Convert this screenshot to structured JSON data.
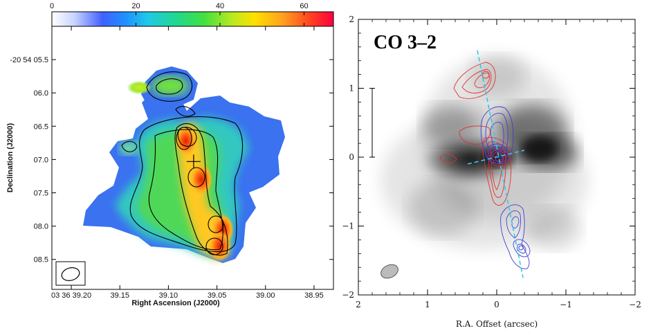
{
  "chart_data": [
    {
      "type": "heatmap",
      "title": "",
      "colorbar": {
        "ticks": [
          "0",
          "20",
          "40",
          "60"
        ],
        "range": [
          0,
          67
        ]
      },
      "xlabel": "Right Ascension (J2000)",
      "ylabel": "Declination (J2000)",
      "x_ticks": [
        "03 36 39.20",
        "39.15",
        "39.10",
        "39.05",
        "39.00",
        "38.95"
      ],
      "y_ticks": [
        "-20 54 05.5",
        "06.0",
        "06.5",
        "07.0",
        "07.5",
        "08.0",
        "08.5"
      ],
      "x_tick_values": [
        39.2,
        39.15,
        39.1,
        39.05,
        39.0,
        38.95
      ],
      "y_tick_values": [
        5.5,
        6.0,
        6.5,
        7.0,
        7.5,
        8.0,
        8.5
      ],
      "xlim": [
        39.22,
        38.93
      ],
      "ylim": [
        5.0,
        8.95
      ],
      "peaks": [
        {
          "ra": 39.082,
          "dec": 6.72,
          "value": 62
        },
        {
          "ra": 39.066,
          "dec": 7.3,
          "value": 64
        },
        {
          "ra": 39.044,
          "dec": 8.05,
          "value": 55
        },
        {
          "ra": 39.047,
          "dec": 8.3,
          "value": 58
        },
        {
          "ra": 39.13,
          "dec": 5.92,
          "value": 36
        }
      ],
      "center_marker": {
        "ra": 39.074,
        "dec": 7.03
      },
      "beam": "ellipse, bottom-left"
    },
    {
      "type": "scatter",
      "title": "CO 3–2",
      "xlabel": "R.A. Offset (arcsec)",
      "ylabel": "",
      "x_ticks": [
        "2",
        "1",
        "0",
        "−1",
        "−2"
      ],
      "y_ticks": [
        "2",
        "1",
        "0",
        "−1",
        "−2"
      ],
      "x_tick_values": [
        2,
        1,
        0,
        -1,
        -2
      ],
      "y_tick_values": [
        2,
        1,
        0,
        -1,
        -2
      ],
      "xlim": [
        2,
        -2
      ],
      "ylim": [
        -2,
        2
      ],
      "scale_bar": {
        "x": 1.8,
        "y_from": 0.0,
        "y_to": 1.0
      },
      "redshifted_lobes": [
        {
          "x": 0.18,
          "y": 1.2
        },
        {
          "x": 0.05,
          "y": 0.55
        },
        {
          "x": -0.08,
          "y": -0.3
        }
      ],
      "blueshifted_lobes": [
        {
          "x": -0.02,
          "y": 0.35
        },
        {
          "x": -0.22,
          "y": -0.9
        },
        {
          "x": -0.3,
          "y": -1.35
        }
      ],
      "jet_axis": [
        {
          "x": 0.28,
          "y": 1.55
        },
        {
          "x": -0.38,
          "y": -1.75
        }
      ],
      "disk_axis": [
        {
          "x": 0.42,
          "y": -0.1
        },
        {
          "x": -0.4,
          "y": 0.1
        }
      ],
      "beam": "grey ellipse, bottom-left"
    }
  ]
}
